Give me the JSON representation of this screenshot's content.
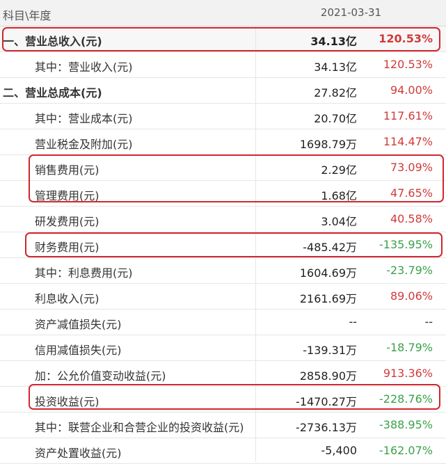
{
  "header": {
    "subject_label": "科目\\年度",
    "date": "2021-03-31"
  },
  "rows": [
    {
      "label": "一、营业总收入(元)",
      "value": "34.13亿",
      "pct": "120.53%",
      "trend": "pos"
    },
    {
      "label": "其中：营业收入(元)",
      "value": "34.13亿",
      "pct": "120.53%",
      "trend": "pos"
    },
    {
      "label": "二、营业总成本(元)",
      "value": "27.82亿",
      "pct": "94.00%",
      "trend": "pos"
    },
    {
      "label": "其中：营业成本(元)",
      "value": "20.70亿",
      "pct": "117.61%",
      "trend": "pos"
    },
    {
      "label": "营业税金及附加(元)",
      "value": "1698.79万",
      "pct": "114.47%",
      "trend": "pos"
    },
    {
      "label": "销售费用(元)",
      "value": "2.29亿",
      "pct": "73.09%",
      "trend": "pos"
    },
    {
      "label": "管理费用(元)",
      "value": "1.68亿",
      "pct": "47.65%",
      "trend": "pos"
    },
    {
      "label": "研发费用(元)",
      "value": "3.04亿",
      "pct": "40.58%",
      "trend": "pos"
    },
    {
      "label": "财务费用(元)",
      "value": "-485.42万",
      "pct": "-135.95%",
      "trend": "neg"
    },
    {
      "label": "其中：利息费用(元)",
      "value": "1604.69万",
      "pct": "-23.79%",
      "trend": "neg"
    },
    {
      "label": "利息收入(元)",
      "value": "2161.69万",
      "pct": "89.06%",
      "trend": "pos"
    },
    {
      "label": "资产减值损失(元)",
      "value": "--",
      "pct": "--",
      "trend": "flat"
    },
    {
      "label": "信用减值损失(元)",
      "value": "-139.31万",
      "pct": "-18.79%",
      "trend": "neg"
    },
    {
      "label": "加：公允价值变动收益(元)",
      "value": "2858.90万",
      "pct": "913.36%",
      "trend": "pos"
    },
    {
      "label": "投资收益(元)",
      "value": "-1470.27万",
      "pct": "-228.76%",
      "trend": "neg"
    },
    {
      "label": "其中：联营企业和合营企业的投资收益(元)",
      "value": "-2736.13万",
      "pct": "-388.95%",
      "trend": "neg"
    },
    {
      "label": "资产处置收益(元)",
      "value": "-5,400",
      "pct": "-162.07%",
      "trend": "neg"
    }
  ],
  "colors": {
    "positive": "#d13a3a",
    "negative": "#3aa14a",
    "highlight": "#d0262d"
  }
}
